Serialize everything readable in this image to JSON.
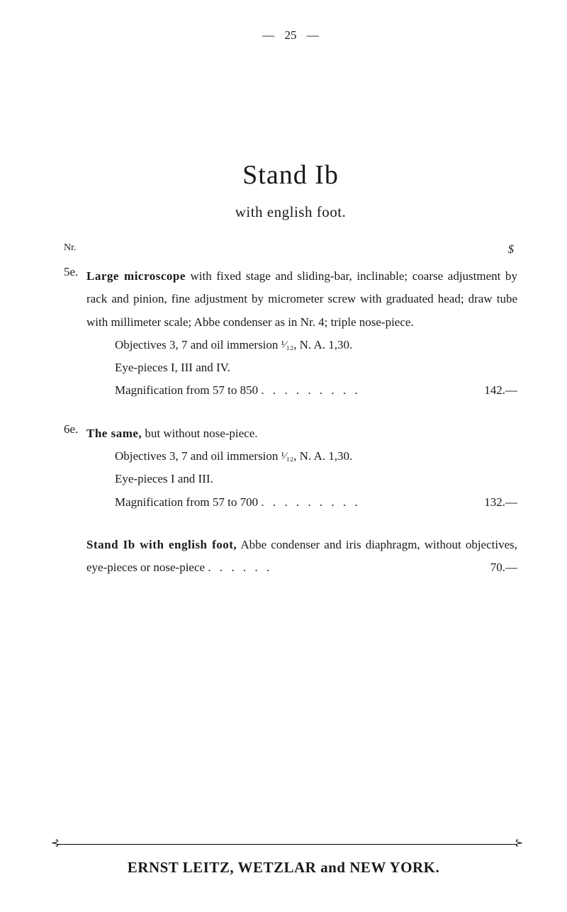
{
  "page_header": {
    "dash": "—",
    "number": "25"
  },
  "title": "Stand Ib",
  "subtitle": "with english foot.",
  "column_headers": {
    "left": "Nr.",
    "right": "$"
  },
  "entry5e": {
    "num": "5e.",
    "label": "Large microscope",
    "body_part1": " with fixed stage and sliding-bar, inclinable; coarse adjustment by rack and pinion, fine adjustment by micrometer screw with graduated head; draw tube with millimeter scale; Abbe condenser as in Nr. 4; triple nose-piece.",
    "objectives": "Objectives 3, 7 and oil immersion ",
    "fraction": "¹⁄₁₂",
    "obj_suffix": ", N. A. 1,30.",
    "eyepieces": "Eye-pieces I, III and IV.",
    "magnification": "Magnification from 57 to 850 ",
    "dots": ". . . . . . . . .",
    "price": "142.—"
  },
  "entry6e": {
    "num": "6e.",
    "label": "The same,",
    "body_part1": " but without nose-piece.",
    "objectives": "Objectives 3, 7 and oil immersion ",
    "fraction": "¹⁄₁₂",
    "obj_suffix": ", N. A. 1,30.",
    "eyepieces": "Eye-pieces I and III.",
    "magnification": "Magnification from 57 to 700 ",
    "dots": ". . . . . . . . .",
    "price": "132.—"
  },
  "entry_stand": {
    "label": "Stand Ib with english foot,",
    "body_part1": " Abbe condenser and iris diaphragm, without objectives, eye-pieces or nose-piece ",
    "dots": ". . . . . .",
    "price": "70.—"
  },
  "footer": {
    "arrow_left": "⊰",
    "arrow_right": "⊱",
    "text": "ERNST LEITZ, WETZLAR and NEW YORK."
  }
}
